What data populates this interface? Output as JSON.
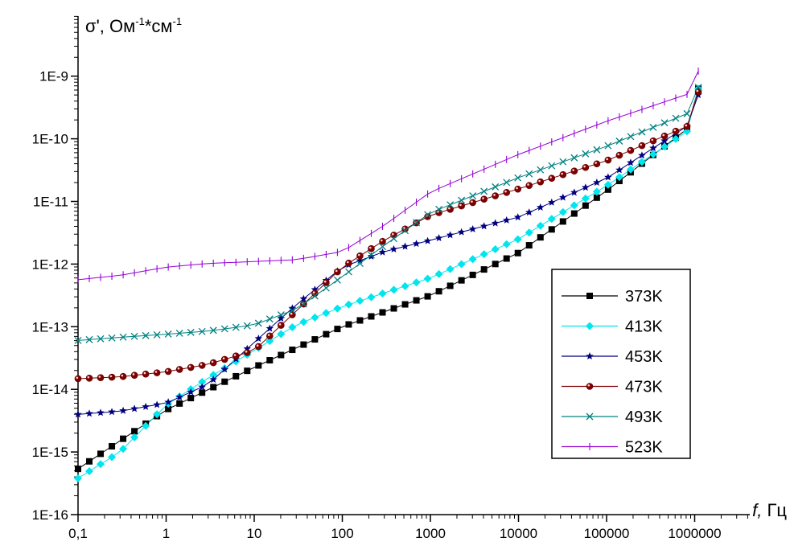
{
  "chart_data": {
    "type": "line",
    "xscale": "log",
    "yscale": "log",
    "xlim": [
      0.1,
      2000000
    ],
    "ylim": [
      1e-16,
      1e-08
    ],
    "ylabel": "σ', Ом⁻¹*см⁻¹",
    "ylabel_main": "σ', Ом",
    "ylabel_sup1": "-1",
    "ylabel_mid": "*см",
    "ylabel_sup2": "-1",
    "xlabel": "f, Гц",
    "xlabel_italic": "f,",
    "xlabel_unit": " Гц",
    "x_tick_labels": [
      "0,1",
      "1",
      "10",
      "100",
      "1000",
      "10000",
      "100000",
      "1000000"
    ],
    "x_tick_values": [
      0.1,
      1,
      10,
      100,
      1000,
      10000,
      100000,
      1000000
    ],
    "y_tick_labels": [
      "1E-16",
      "1E-15",
      "1E-14",
      "1E-13",
      "1E-12",
      "1E-11",
      "1E-10",
      "1E-9"
    ],
    "y_tick_values": [
      1e-16,
      1e-15,
      1e-14,
      1e-13,
      1e-12,
      1e-11,
      1e-10,
      1e-09
    ],
    "grid": false,
    "legend_position": "right",
    "series": [
      {
        "name": "373K",
        "color": "#000000",
        "marker": "square",
        "x": [
          0.1,
          1,
          10,
          100,
          1000,
          10000,
          100000,
          1000000,
          1100000
        ],
        "logy": [
          -15.27,
          -14.33,
          -13.65,
          -13.0,
          -12.5,
          -11.82,
          -10.83,
          -9.75,
          -9.2
        ]
      },
      {
        "name": "413K",
        "color": "#00e5ee",
        "marker": "diamond",
        "x": [
          0.1,
          0.3,
          1,
          3,
          10,
          30,
          100,
          1000,
          10000,
          100000,
          1000000,
          1100000
        ],
        "logy": [
          -15.42,
          -15.0,
          -14.25,
          -13.82,
          -13.38,
          -12.97,
          -12.68,
          -12.22,
          -11.6,
          -10.75,
          -9.8,
          -9.2
        ]
      },
      {
        "name": "453K",
        "color": "#000080",
        "marker": "star",
        "x": [
          0.1,
          0.3,
          1,
          3,
          10,
          30,
          100,
          300,
          1000,
          10000,
          100000,
          1000000,
          1100000
        ],
        "logy": [
          -14.4,
          -14.35,
          -14.22,
          -13.92,
          -13.25,
          -12.65,
          -12.05,
          -11.8,
          -11.62,
          -11.25,
          -10.63,
          -9.72,
          -9.3
        ]
      },
      {
        "name": "473K",
        "color": "#800000",
        "marker": "circle",
        "x": [
          0.1,
          0.3,
          1,
          3,
          10,
          30,
          100,
          300,
          1000,
          10000,
          100000,
          1000000,
          1100000
        ],
        "logy": [
          -13.83,
          -13.8,
          -13.72,
          -13.6,
          -13.38,
          -12.75,
          -12.05,
          -11.62,
          -11.22,
          -10.8,
          -10.35,
          -9.75,
          -9.25
        ]
      },
      {
        "name": "493K",
        "color": "#008080",
        "marker": "x",
        "x": [
          0.1,
          0.3,
          1,
          3,
          10,
          30,
          100,
          300,
          1000,
          10000,
          100000,
          1000000,
          1100000
        ],
        "logy": [
          -13.22,
          -13.17,
          -13.12,
          -13.07,
          -12.97,
          -12.72,
          -12.2,
          -11.7,
          -11.18,
          -10.62,
          -10.12,
          -9.55,
          -9.18
        ]
      },
      {
        "name": "523K",
        "color": "#9400d3",
        "marker": "plus",
        "x": [
          0.1,
          0.3,
          1,
          3,
          10,
          30,
          100,
          300,
          1000,
          10000,
          100000,
          1000000,
          1100000
        ],
        "logy": [
          -12.25,
          -12.18,
          -12.05,
          -11.99,
          -11.96,
          -11.93,
          -11.8,
          -11.38,
          -10.85,
          -10.25,
          -9.72,
          -9.25,
          -8.92
        ]
      }
    ]
  }
}
